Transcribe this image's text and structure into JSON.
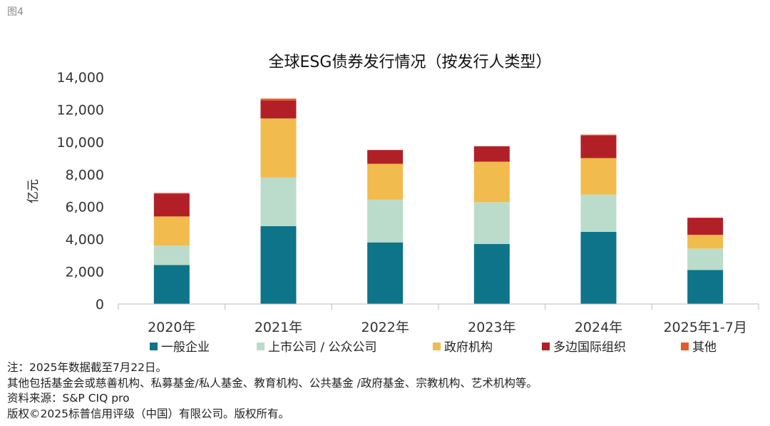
{
  "figure_label": "图4",
  "chart_data": {
    "type": "bar",
    "stacked": true,
    "title": "全球ESG债券发行情况（按发行人类型）",
    "ylabel": "亿元",
    "xlabel": "",
    "ylim": [
      0,
      14000
    ],
    "yticks": [
      "0",
      "2,000",
      "4,000",
      "6,000",
      "8,000",
      "10,000",
      "12,000",
      "14,000"
    ],
    "ytick_values": [
      0,
      2000,
      4000,
      6000,
      8000,
      10000,
      12000,
      14000
    ],
    "categories": [
      "2020年",
      "2021年",
      "2022年",
      "2023年",
      "2024年",
      "2025年1-7月"
    ],
    "series": [
      {
        "name": "一般企业",
        "color": "#0E7489",
        "values": [
          2400,
          4800,
          3800,
          3700,
          4450,
          2100
        ]
      },
      {
        "name": "上市公司 / 公众公司",
        "color": "#BBDCCB",
        "values": [
          1200,
          3000,
          2650,
          2580,
          2300,
          1320
        ]
      },
      {
        "name": "政府机构",
        "color": "#F2BB4E",
        "values": [
          1800,
          3650,
          2200,
          2500,
          2250,
          850
        ]
      },
      {
        "name": "多边国际组织",
        "color": "#B22027",
        "values": [
          1400,
          1100,
          850,
          950,
          1400,
          1050
        ]
      },
      {
        "name": "其他",
        "color": "#E55A2B",
        "values": [
          50,
          120,
          0,
          0,
          50,
          0
        ]
      }
    ],
    "grid": false,
    "legend_position": "bottom"
  },
  "footnotes": [
    "注：2025年数据截至7月22日。",
    "其他包括基金会或慈善机构、私募基金/私人基金、教育机构、公共基金 /政府基金、宗教机构、艺术机构等。",
    "资料来源：S&P CIQ pro",
    "版权©2025标普信用评级（中国）有限公司。版权所有。"
  ]
}
